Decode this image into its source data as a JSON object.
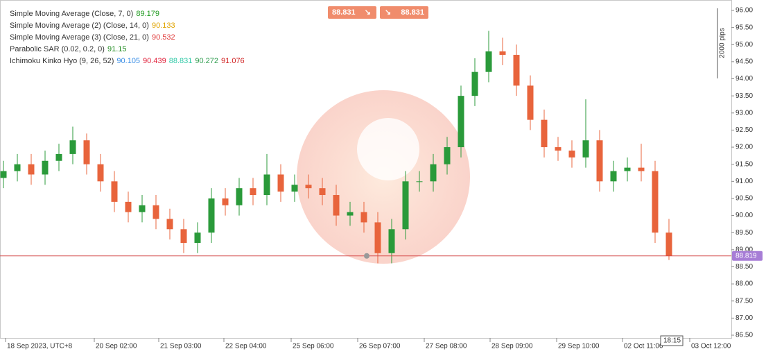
{
  "chart_data": {
    "type": "candlestick",
    "legend": [
      {
        "label": "Simple Moving Average (Close, 7, 0)",
        "values": [
          {
            "value": 89.179,
            "color": "#1e9a1e"
          }
        ]
      },
      {
        "label": "Simple Moving Average (2) (Close, 14, 0)",
        "values": [
          {
            "value": 90.133,
            "color": "#e0a400"
          }
        ]
      },
      {
        "label": "Simple Moving Average (3) (Close, 21, 0)",
        "values": [
          {
            "value": 90.532,
            "color": "#e03a3a"
          }
        ]
      },
      {
        "label": "Parabolic SAR (0.02, 0.2, 0)",
        "values": [
          {
            "value": 91.15,
            "color": "#1e8a1e"
          }
        ]
      },
      {
        "label": "Ichimoku Kinko Hyo (9, 26, 52)",
        "values": [
          {
            "value": 90.105,
            "color": "#3a8ee6"
          },
          {
            "value": 90.439,
            "color": "#e0203a"
          },
          {
            "value": 88.831,
            "color": "#2ec9a6"
          },
          {
            "value": 90.272,
            "color": "#2e9c4e"
          },
          {
            "value": 91.076,
            "color": "#d02020"
          }
        ]
      }
    ],
    "sell": 88.831,
    "buy": 88.831,
    "scale_label": "2000 pips",
    "current_price": 88.819,
    "time_label": "18:15",
    "up_color": "#2a9a3a",
    "down_color": "#e8643c",
    "price_line_color": "#d44a4a",
    "xlim": [
      0,
      52.5
    ],
    "xticks": [
      {
        "value": 0.15,
        "label": "18 Sep 2023, UTC+8"
      },
      {
        "value": 6.55,
        "label": "20 Sep 02:00"
      },
      {
        "value": 11.2,
        "label": "21 Sep 03:00"
      },
      {
        "value": 15.9,
        "label": "22 Sep 04:00"
      },
      {
        "value": 20.75,
        "label": "25 Sep 06:00"
      },
      {
        "value": 25.55,
        "label": "26 Sep 07:00"
      },
      {
        "value": 30.35,
        "label": "27 Sep 08:00"
      },
      {
        "value": 35.1,
        "label": "28 Sep 09:00"
      },
      {
        "value": 39.9,
        "label": "29 Sep 10:00"
      },
      {
        "value": 44.65,
        "label": "02 Oct 11:00"
      },
      {
        "value": 49.5,
        "label": "03 Oct 12:00"
      }
    ],
    "ylim": [
      86.5,
      96
    ],
    "yticks": [
      {
        "value": 96,
        "label": "96.00"
      },
      {
        "value": 95.5,
        "label": "95.50"
      },
      {
        "value": 95,
        "label": "95.00"
      },
      {
        "value": 94.5,
        "label": "94.50"
      },
      {
        "value": 94,
        "label": "94.00"
      },
      {
        "value": 93.5,
        "label": "93.50"
      },
      {
        "value": 93,
        "label": "93.00"
      },
      {
        "value": 92.5,
        "label": "92.50"
      },
      {
        "value": 92,
        "label": "92.00"
      },
      {
        "value": 91.5,
        "label": "91.50"
      },
      {
        "value": 91,
        "label": "91.00"
      },
      {
        "value": 90.5,
        "label": "90.50"
      },
      {
        "value": 90,
        "label": "90.00"
      },
      {
        "value": 89.5,
        "label": "89.50"
      },
      {
        "value": 89,
        "label": "89.00"
      },
      {
        "value": 88.5,
        "label": "88.50"
      },
      {
        "value": 88,
        "label": "88.00"
      },
      {
        "value": 87.5,
        "label": "87.50"
      },
      {
        "value": 87,
        "label": "87.00"
      },
      {
        "value": 86.5,
        "label": "86.50"
      }
    ],
    "x": [
      0,
      1,
      2,
      3,
      4,
      5,
      6,
      7,
      8,
      9,
      10,
      11,
      12,
      13,
      14,
      15,
      16,
      17,
      18,
      19,
      20,
      21,
      22,
      23,
      24,
      25,
      26,
      27,
      28,
      29,
      30,
      31,
      32,
      33,
      34,
      35,
      36,
      37,
      38,
      39,
      40,
      41,
      42,
      43,
      44,
      45,
      46,
      47,
      48
    ],
    "open": [
      91.1,
      91.3,
      91.5,
      91.2,
      91.6,
      91.8,
      92.2,
      91.5,
      91.0,
      90.4,
      90.1,
      90.3,
      89.9,
      89.6,
      89.2,
      89.5,
      90.5,
      90.3,
      90.8,
      90.6,
      91.2,
      90.7,
      90.9,
      90.8,
      90.6,
      90.0,
      90.1,
      89.8,
      88.9,
      89.6,
      91.0,
      91.0,
      91.5,
      92.0,
      93.5,
      94.2,
      94.8,
      94.7,
      93.8,
      92.8,
      92.0,
      91.9,
      91.7,
      92.2,
      91.0,
      91.3,
      91.4,
      91.3,
      89.5
    ],
    "high": [
      91.6,
      91.8,
      91.8,
      91.9,
      92.1,
      92.6,
      92.4,
      91.8,
      91.3,
      90.7,
      90.6,
      90.6,
      90.2,
      89.9,
      89.8,
      90.8,
      90.8,
      91.1,
      91.1,
      91.8,
      91.5,
      91.2,
      91.2,
      91.1,
      90.9,
      90.4,
      90.4,
      90.1,
      89.9,
      91.3,
      91.3,
      91.8,
      92.3,
      93.8,
      94.6,
      95.4,
      95.2,
      95.0,
      94.1,
      93.1,
      92.3,
      92.2,
      93.4,
      92.5,
      91.6,
      91.7,
      92.1,
      91.6,
      89.9
    ],
    "low": [
      90.8,
      91.0,
      90.9,
      90.9,
      91.3,
      91.5,
      91.2,
      90.7,
      90.1,
      89.8,
      89.8,
      89.6,
      89.3,
      88.9,
      88.9,
      89.2,
      90.0,
      90.0,
      90.3,
      90.3,
      90.4,
      90.4,
      90.5,
      90.3,
      89.7,
      89.7,
      89.5,
      88.6,
      88.6,
      89.3,
      90.7,
      90.7,
      91.2,
      91.7,
      93.2,
      93.9,
      94.4,
      93.5,
      92.5,
      91.7,
      91.6,
      91.4,
      91.4,
      90.7,
      90.7,
      91.0,
      91.0,
      89.2,
      88.7
    ],
    "close": [
      91.3,
      91.5,
      91.2,
      91.6,
      91.8,
      92.2,
      91.5,
      91.0,
      90.4,
      90.1,
      90.3,
      89.9,
      89.6,
      89.2,
      89.5,
      90.5,
      90.3,
      90.8,
      90.6,
      91.2,
      90.7,
      90.9,
      90.8,
      90.6,
      90.0,
      90.1,
      89.8,
      88.9,
      89.6,
      91.0,
      91.0,
      91.5,
      92.0,
      93.5,
      94.2,
      94.8,
      94.7,
      93.8,
      92.8,
      92.0,
      91.9,
      91.7,
      92.2,
      91.0,
      91.3,
      91.4,
      91.3,
      89.5,
      88.82
    ]
  }
}
